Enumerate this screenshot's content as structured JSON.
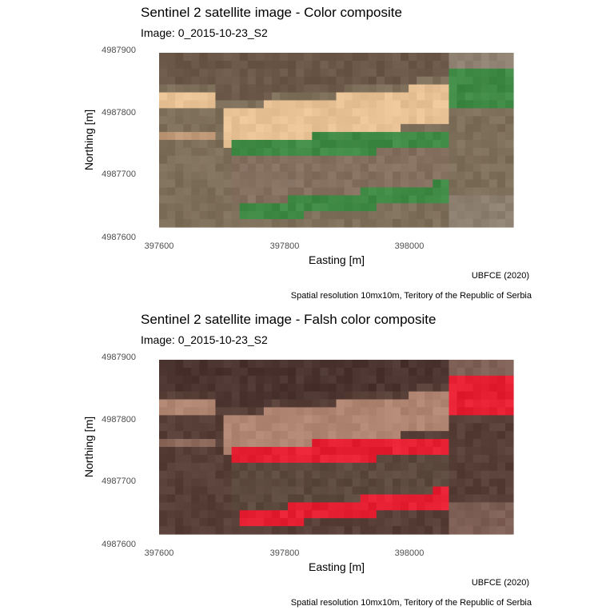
{
  "chart_data": [
    {
      "type": "heatmap",
      "title": "Sentinel 2 satellite image - Color composite",
      "subtitle": "Image:  0_2015-10-23_S2",
      "xlabel": "Easting [m]",
      "ylabel": "Northing [m]",
      "x_ticks": [
        "397600",
        "397800",
        "398000"
      ],
      "y_ticks": [
        "4987900",
        "4987800",
        "4987700",
        "4987600"
      ],
      "xlim": [
        397575,
        398175
      ],
      "ylim": [
        4987610,
        4987890
      ],
      "grid": false,
      "caption_1": "UBFCE (2020)",
      "caption_2": "Spatial resolution 10mx10m, Teritory of the Republic of Serbia",
      "palette": {
        "base": "#7e6f5b",
        "dark": "#6c5848",
        "bright": "#e8c294",
        "bright_soft": "#c09a78",
        "vegetation": "#3f8a44",
        "vegetation_soft": "#58864f",
        "field_mid": "#857060",
        "grey": "#8d8070"
      }
    },
    {
      "type": "heatmap",
      "title": "Sentinel 2 satellite image - Falsh color composite",
      "subtitle": "Image:  0_2015-10-23_S2",
      "xlabel": "Easting [m]",
      "ylabel": "Northing [m]",
      "x_ticks": [
        "397600",
        "397800",
        "398000"
      ],
      "y_ticks": [
        "4987900",
        "4987800",
        "4987700",
        "4987600"
      ],
      "xlim": [
        397575,
        398175
      ],
      "ylim": [
        4987610,
        4987890
      ],
      "grid": false,
      "caption_1": "UBFCE (2020)",
      "caption_2": "Spatial resolution 10mx10m, Teritory of the Republic of Serbia",
      "palette": {
        "base": "#573f38",
        "dark": "#4c3530",
        "bright": "#b08672",
        "bright_soft": "#8e6a5d",
        "vegetation": "#e61f32",
        "vegetation_soft": "#b43a3a",
        "field_mid": "#5d4a3f",
        "grey": "#7e5f55"
      }
    }
  ]
}
